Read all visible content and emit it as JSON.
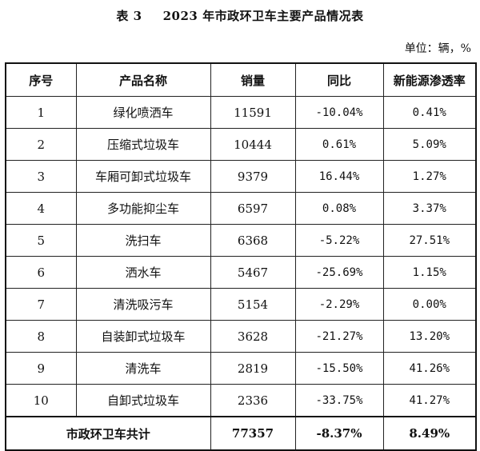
{
  "title": {
    "number": "表 3",
    "text": "2023 年市政环卫车主要产品情况表"
  },
  "unit": "单位：辆，%",
  "headers": [
    "序号",
    "产品名称",
    "销量",
    "同比",
    "新能源渗透率"
  ],
  "rows": [
    [
      "1",
      "绿化喷洒车",
      "11591",
      "-10.04%",
      "0.41%"
    ],
    [
      "2",
      "压缩式垃圾车",
      "10444",
      "0.61%",
      "5.09%"
    ],
    [
      "3",
      "车厢可卸式垃圾车",
      "9379",
      "16.44%",
      "1.27%"
    ],
    [
      "4",
      "多功能抑尘车",
      "6597",
      "0.08%",
      "3.37%"
    ],
    [
      "5",
      "洗扫车",
      "6368",
      "-5.22%",
      "27.51%"
    ],
    [
      "6",
      "洒水车",
      "5467",
      "-25.69%",
      "1.15%"
    ],
    [
      "7",
      "清洗吸污车",
      "5154",
      "-2.29%",
      "0.00%"
    ],
    [
      "8",
      "自装卸式垃圾车",
      "3628",
      "-21.27%",
      "13.20%"
    ],
    [
      "9",
      "清洗车",
      "2819",
      "-15.50%",
      "41.26%"
    ],
    [
      "10",
      "自卸式垃圾车",
      "2336",
      "-33.75%",
      "41.27%"
    ]
  ],
  "total": {
    "label": "市政环卫车共计",
    "sales": "77357",
    "yoy": "-8.37%",
    "penetration": "8.49%"
  }
}
